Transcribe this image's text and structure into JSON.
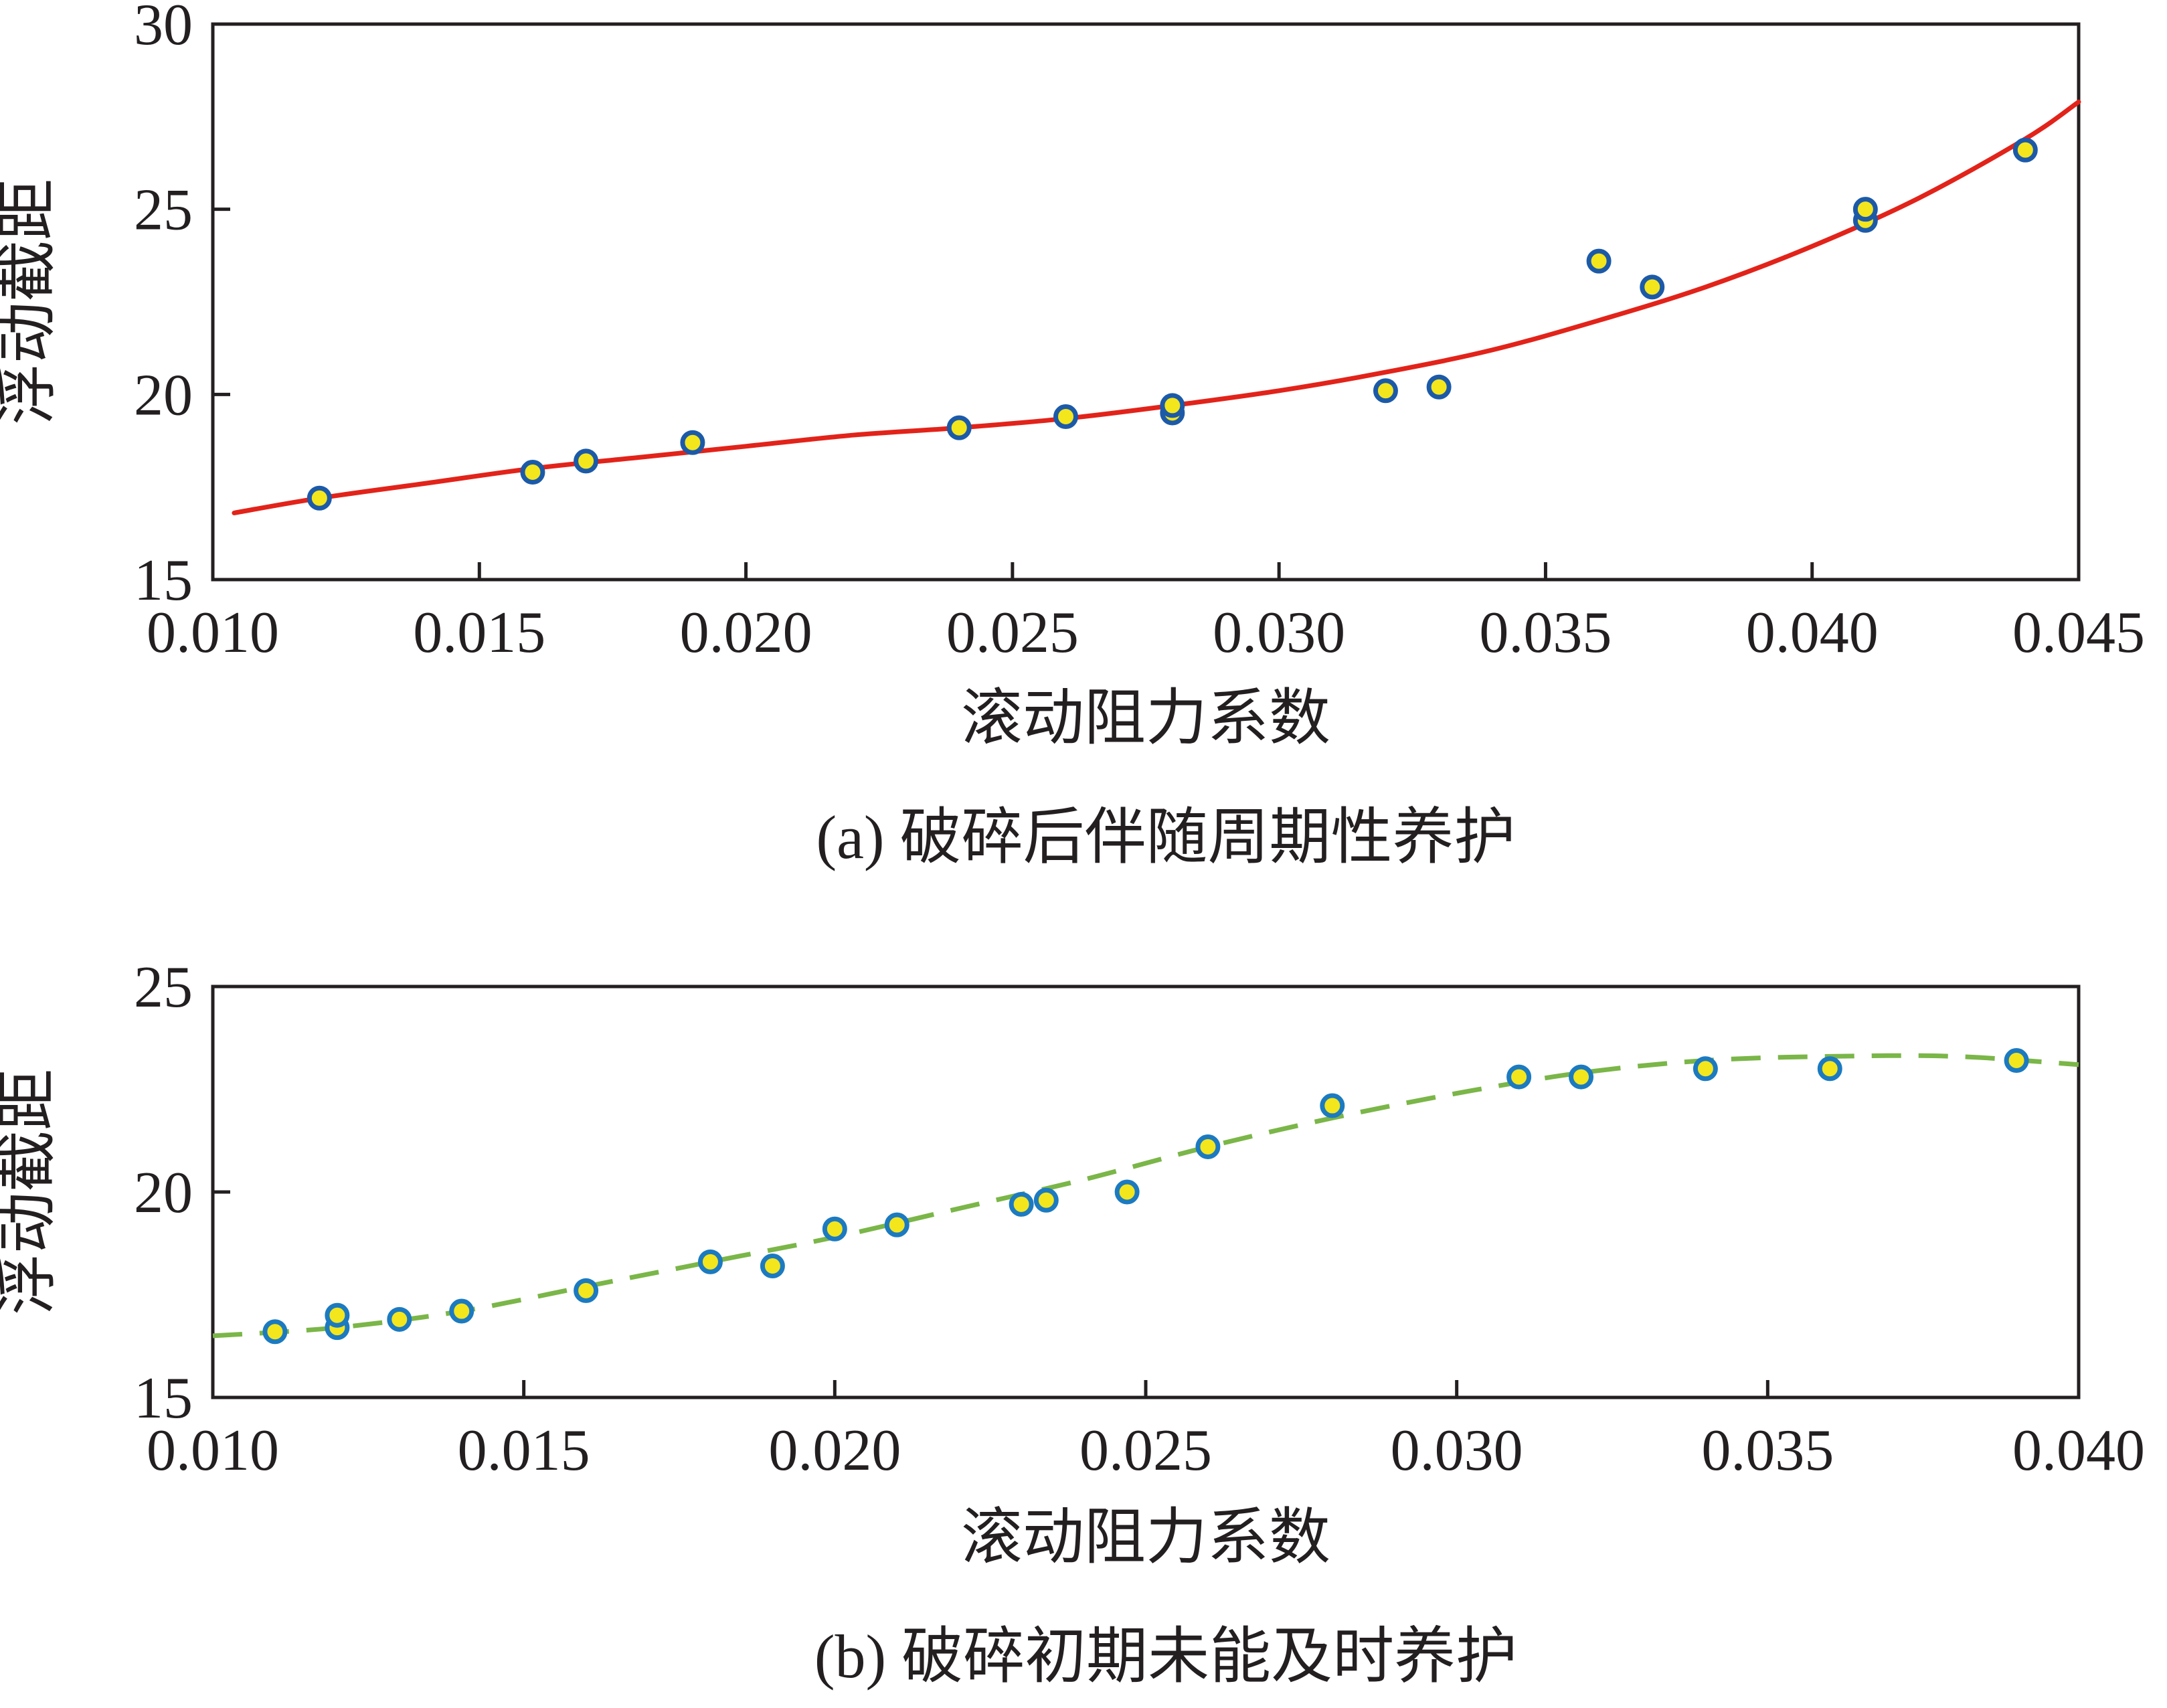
{
  "chart_data": [
    {
      "type": "scatter",
      "caption": "(a) 破碎后伴随周期性养护",
      "xlabel": "滚动阻力系数",
      "ylabel": "浮动截距",
      "xlim": [
        0.01,
        0.045
      ],
      "ylim": [
        15,
        30
      ],
      "xticks": [
        "0.010",
        "0.015",
        "0.020",
        "0.025",
        "0.030",
        "0.035",
        "0.040",
        "0.045"
      ],
      "yticks": [
        "15",
        "20",
        "25",
        "30"
      ],
      "grid": false,
      "points": {
        "x": [
          0.012,
          0.016,
          0.017,
          0.019,
          0.024,
          0.026,
          0.028,
          0.028,
          0.032,
          0.033,
          0.036,
          0.037,
          0.041,
          0.041,
          0.044
        ],
        "y": [
          17.2,
          17.9,
          18.2,
          18.7,
          19.1,
          19.4,
          19.5,
          19.7,
          20.1,
          20.2,
          23.6,
          22.9,
          24.7,
          25.0,
          26.6
        ]
      },
      "fit": {
        "x": [
          0.0104,
          0.012,
          0.014,
          0.016,
          0.018,
          0.02,
          0.022,
          0.024,
          0.026,
          0.028,
          0.03,
          0.032,
          0.034,
          0.036,
          0.038,
          0.04,
          0.042,
          0.044,
          0.045
        ],
        "y": [
          16.8,
          17.2,
          17.6,
          18.0,
          18.3,
          18.6,
          18.9,
          19.1,
          19.35,
          19.7,
          20.1,
          20.6,
          21.2,
          22.0,
          22.9,
          24.0,
          25.3,
          26.9,
          27.9
        ]
      },
      "colors": {
        "fit": "#e2231a",
        "marker_fill": "#f4e61c",
        "marker_edge": "#1c5aa8"
      }
    },
    {
      "type": "scatter",
      "caption": "(b) 破碎初期未能及时养护",
      "xlabel": "滚动阻力系数",
      "ylabel": "浮动截距",
      "xlim": [
        0.01,
        0.04
      ],
      "ylim": [
        15,
        25
      ],
      "xticks": [
        "0.010",
        "0.015",
        "0.020",
        "0.025",
        "0.030",
        "0.035",
        "0.040"
      ],
      "yticks": [
        "15",
        "20",
        "25"
      ],
      "grid": false,
      "points": {
        "x": [
          0.011,
          0.012,
          0.012,
          0.013,
          0.014,
          0.016,
          0.018,
          0.019,
          0.02,
          0.021,
          0.023,
          0.0234,
          0.0247,
          0.026,
          0.028,
          0.031,
          0.032,
          0.034,
          0.036,
          0.039
        ],
        "y": [
          16.6,
          16.7,
          17.0,
          16.9,
          17.1,
          17.6,
          18.3,
          18.2,
          19.1,
          19.2,
          19.7,
          19.8,
          20.0,
          21.1,
          22.1,
          22.8,
          22.8,
          23.0,
          23.0,
          23.2
        ]
      },
      "fit": {
        "x": [
          0.01,
          0.012,
          0.014,
          0.016,
          0.018,
          0.02,
          0.022,
          0.024,
          0.026,
          0.028,
          0.03,
          0.032,
          0.034,
          0.036,
          0.038,
          0.04
        ],
        "y": [
          16.5,
          16.7,
          17.1,
          17.7,
          18.3,
          18.9,
          19.6,
          20.3,
          21.1,
          21.8,
          22.4,
          22.9,
          23.2,
          23.3,
          23.3,
          23.1
        ]
      },
      "colors": {
        "fit": "#7ab648",
        "marker_fill": "#f4e61c",
        "marker_edge": "#1c7ac0"
      }
    }
  ]
}
